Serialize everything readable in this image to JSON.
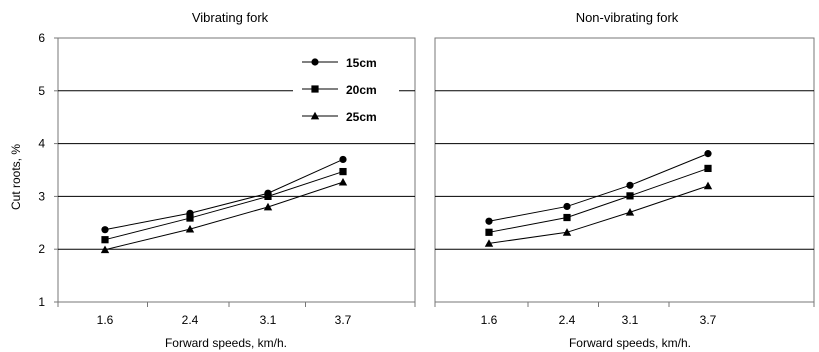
{
  "chart_data": [
    {
      "type": "line",
      "title": "Vibrating fork",
      "xlabel": "Forward speeds, km/h.",
      "ylabel": "Cut roots, %",
      "categories": [
        "1.6",
        "2.4",
        "3.1",
        "3.7"
      ],
      "ylim": [
        1,
        6
      ],
      "yticks": [
        1,
        2,
        3,
        4,
        5,
        6
      ],
      "grid": "horizontal",
      "legend": "top-right",
      "series": [
        {
          "name": "15cm",
          "marker": "circle",
          "values": [
            2.37,
            2.68,
            3.06,
            3.7
          ]
        },
        {
          "name": "20cm",
          "marker": "square",
          "values": [
            2.18,
            2.59,
            3.0,
            3.47
          ]
        },
        {
          "name": "25cm",
          "marker": "triangle",
          "values": [
            1.99,
            2.38,
            2.8,
            3.27
          ]
        }
      ]
    },
    {
      "type": "line",
      "title": "Non-vibrating fork",
      "xlabel": "Forward speeds, km/h.",
      "ylabel": "",
      "categories": [
        "1.6",
        "2.4",
        "3.1",
        "3.7"
      ],
      "ylim": [
        1,
        6
      ],
      "grid": "horizontal",
      "series": [
        {
          "name": "15cm",
          "marker": "circle",
          "values": [
            2.53,
            2.81,
            3.21,
            3.81
          ]
        },
        {
          "name": "20cm",
          "marker": "square",
          "values": [
            2.32,
            2.6,
            3.01,
            3.53
          ]
        },
        {
          "name": "25cm",
          "marker": "triangle",
          "values": [
            2.11,
            2.32,
            2.7,
            3.2
          ]
        }
      ]
    }
  ]
}
